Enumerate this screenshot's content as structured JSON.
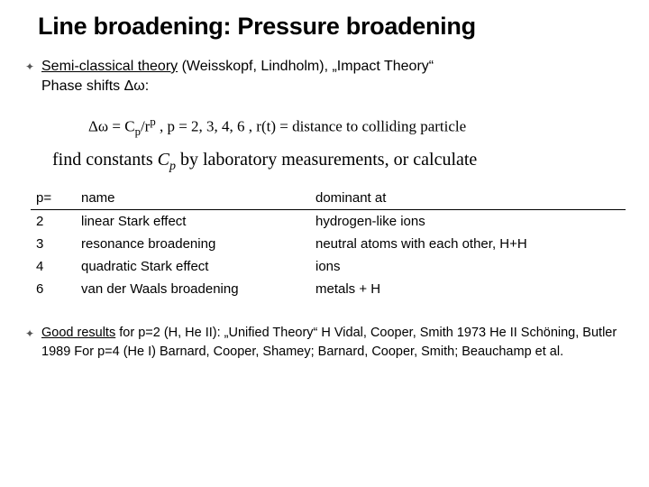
{
  "title": "Line broadening: Pressure broadening",
  "bullet1_a": "Semi-classical theory",
  "bullet1_b": " (Weisskopf, Lindholm), „Impact Theory“",
  "bullet1_c": "Phase shifts Δω:",
  "formula_prefix": "Δω = C",
  "formula_sub1": "p",
  "formula_mid1": "/r",
  "formula_sup1": "p",
  "formula_mid2": " ,  p = 2, 3, 4, 6 ,  r(t) = distance to colliding particle",
  "find_a": "find constants ",
  "find_cp": "C",
  "find_cp_sub": "p",
  "find_b": " by laboratory measurements, or calculate",
  "table": {
    "headers": {
      "p": "p=",
      "name": "name",
      "dom": "dominant at"
    },
    "rows": [
      {
        "p": "2",
        "name": "linear Stark effect",
        "dom": "hydrogen-like ions"
      },
      {
        "p": "3",
        "name": "resonance broadening",
        "dom": "neutral atoms with each other, H+H"
      },
      {
        "p": "4",
        "name": "quadratic Stark effect",
        "dom": "ions"
      },
      {
        "p": "6",
        "name": "van der Waals broadening",
        "dom": "metals + H"
      }
    ]
  },
  "footer_a": "Good results",
  "footer_b": " for p=2 (H, He II): „Unified Theory“ H   Vidal, Cooper, Smith 1973  He II Schöning, Butler 1989 For p=4 (He I) Barnard, Cooper, Shamey; Barnard, Cooper, Smith; Beauchamp et al."
}
